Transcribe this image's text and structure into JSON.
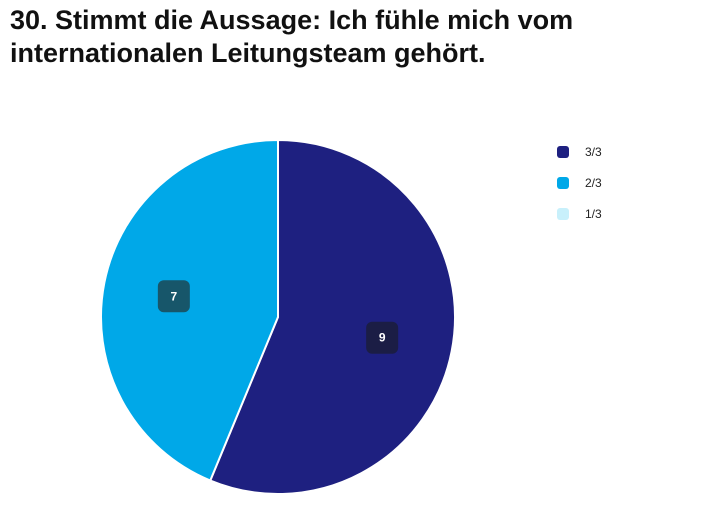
{
  "chart_data": {
    "type": "pie",
    "title": "30. Stimmt die Aussage: Ich fühle mich vom internationalen Leitungsteam gehört.",
    "slices": [
      {
        "label": "3/3",
        "value": 9,
        "color": "#1e2080",
        "label_bg": "#1b1d45"
      },
      {
        "label": "2/3",
        "value": 7,
        "color": "#00a8e8",
        "label_bg": "#17566a"
      },
      {
        "label": "1/3",
        "value": 0,
        "color": "#c8f0fb",
        "label_bg": "#1b1d45"
      }
    ],
    "legend_position": "top-right"
  }
}
